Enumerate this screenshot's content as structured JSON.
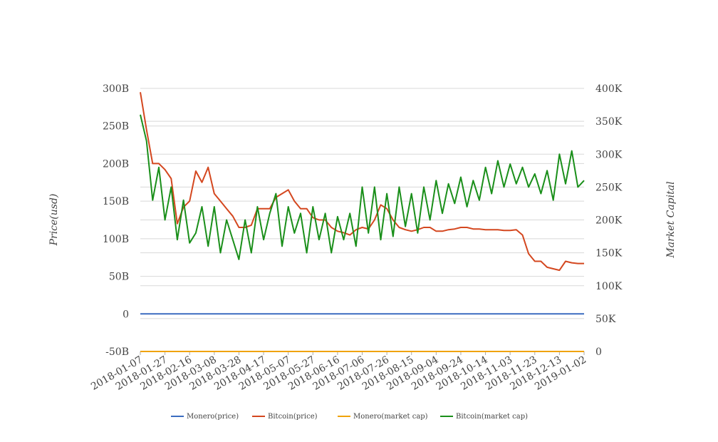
{
  "chart_data": {
    "type": "line",
    "ylabel": "Price(usd)",
    "y2label": "Market Capital",
    "x": [
      "2018-01-07",
      "2018-01-12",
      "2018-01-17",
      "2018-01-22",
      "2018-01-27",
      "2018-02-01",
      "2018-02-06",
      "2018-02-11",
      "2018-02-16",
      "2018-02-21",
      "2018-02-26",
      "2018-03-03",
      "2018-03-08",
      "2018-03-13",
      "2018-03-18",
      "2018-03-23",
      "2018-03-28",
      "2018-04-02",
      "2018-04-07",
      "2018-04-12",
      "2018-04-17",
      "2018-04-22",
      "2018-04-27",
      "2018-05-02",
      "2018-05-07",
      "2018-05-12",
      "2018-05-17",
      "2018-05-22",
      "2018-05-27",
      "2018-06-01",
      "2018-06-06",
      "2018-06-11",
      "2018-06-16",
      "2018-06-21",
      "2018-06-26",
      "2018-07-01",
      "2018-07-06",
      "2018-07-11",
      "2018-07-16",
      "2018-07-21",
      "2018-07-26",
      "2018-07-31",
      "2018-08-05",
      "2018-08-10",
      "2018-08-15",
      "2018-08-20",
      "2018-08-25",
      "2018-08-30",
      "2018-09-04",
      "2018-09-09",
      "2018-09-14",
      "2018-09-19",
      "2018-09-24",
      "2018-09-29",
      "2018-10-04",
      "2018-10-09",
      "2018-10-14",
      "2018-10-19",
      "2018-10-24",
      "2018-10-29",
      "2018-11-03",
      "2018-11-08",
      "2018-11-13",
      "2018-11-18",
      "2018-11-23",
      "2018-11-28",
      "2018-12-03",
      "2018-12-08",
      "2018-12-13",
      "2018-12-18",
      "2018-12-23",
      "2018-12-28",
      "2019-01-02"
    ],
    "xlim": [
      "2018-01-07",
      "2019-01-02"
    ],
    "xticks": [
      "2018-01-07",
      "2018-01-27",
      "2018-02-16",
      "2018-03-08",
      "2018-03-28",
      "2018-04-17",
      "2018-05-07",
      "2018-05-27",
      "2018-06-16",
      "2018-07-06",
      "2018-07-26",
      "2018-08-15",
      "2018-09-04",
      "2018-09-24",
      "2018-10-14",
      "2018-11-03",
      "2018-11-23",
      "2018-12-13",
      "2019-01-02"
    ],
    "ylim": [
      -50000000000.0,
      300000000000.0
    ],
    "yticks": [
      {
        "value": -50000000000.0,
        "label": "-50B"
      },
      0,
      {
        "value": 50000000000.0,
        "label": "50B"
      },
      {
        "value": 100000000000.0,
        "label": "100B"
      },
      {
        "value": 150000000000.0,
        "label": "150B"
      },
      {
        "value": 200000000000.0,
        "label": "200B"
      },
      {
        "value": 250000000000.0,
        "label": "250B"
      },
      {
        "value": 300000000000.0,
        "label": "300B"
      }
    ],
    "y2lim": [
      0,
      400000
    ],
    "y2ticks": [
      0,
      {
        "value": 50000,
        "label": "50K"
      },
      {
        "value": 100000,
        "label": "100K"
      },
      {
        "value": 150000,
        "label": "150K"
      },
      {
        "value": 200000,
        "label": "200K"
      },
      {
        "value": 250000,
        "label": "250K"
      },
      {
        "value": 300000,
        "label": "300K"
      },
      {
        "value": 350000,
        "label": "350K"
      },
      {
        "value": 400000,
        "label": "400K"
      }
    ],
    "grid": true,
    "legend": "bottom",
    "series": [
      {
        "name": "Monero(price)",
        "color": "#3b6cc0",
        "values": [
          380,
          370,
          360,
          340,
          330,
          300,
          200,
          230,
          300,
          330,
          320,
          350,
          260,
          220,
          200,
          180,
          200,
          210,
          230,
          270,
          260,
          280,
          240,
          200,
          210,
          180,
          150,
          130,
          140,
          120,
          110,
          120,
          130,
          140,
          150,
          140,
          130,
          125,
          120,
          110,
          115,
          120,
          125,
          130,
          110,
          105,
          110,
          115,
          120,
          115,
          110,
          112,
          115,
          110,
          105,
          100,
          110,
          112,
          115,
          110,
          95,
          80,
          60,
          55,
          50,
          50,
          48,
          45,
          50,
          55,
          50,
          52,
          55
        ]
      },
      {
        "name": "Bitcoin(price)",
        "color": "#d4471f",
        "values": [
          295000000000.0,
          245000000000.0,
          200000000000.0,
          200000000000.0,
          192000000000.0,
          180000000000.0,
          120000000000.0,
          142000000000.0,
          150000000000.0,
          190000000000.0,
          175000000000.0,
          195000000000.0,
          160000000000.0,
          150000000000.0,
          140000000000.0,
          130000000000.0,
          115000000000.0,
          115000000000.0,
          118000000000.0,
          140000000000.0,
          140000000000.0,
          140000000000.0,
          155000000000.0,
          160000000000.0,
          165000000000.0,
          150000000000.0,
          140000000000.0,
          140000000000.0,
          128000000000.0,
          125000000000.0,
          125000000000.0,
          115000000000.0,
          110000000000.0,
          108000000000.0,
          105000000000.0,
          112000000000.0,
          115000000000.0,
          113000000000.0,
          125000000000.0,
          145000000000.0,
          140000000000.0,
          125000000000.0,
          115000000000.0,
          112000000000.0,
          110000000000.0,
          112000000000.0,
          115000000000.0,
          115000000000.0,
          110000000000.0,
          110000000000.0,
          112000000000.0,
          113000000000.0,
          115000000000.0,
          115000000000.0,
          113000000000.0,
          113000000000.0,
          112000000000.0,
          112000000000.0,
          112000000000.0,
          111000000000.0,
          111000000000.0,
          112000000000.0,
          105000000000.0,
          80000000000.0,
          70000000000.0,
          70000000000.0,
          62000000000.0,
          60000000000.0,
          58000000000.0,
          70000000000.0,
          68000000000.0,
          67000000000.0,
          67000000000.0
        ]
      },
      {
        "name": "Monero(market cap)",
        "axis": "y2",
        "color": "#f0a30a",
        "values": [
          6,
          6,
          5.8,
          5.5,
          5.3,
          4.8,
          3.2,
          3.7,
          4.8,
          5.3,
          5.1,
          5.6,
          4.2,
          3.5,
          3.2,
          2.9,
          3.2,
          3.4,
          3.7,
          4.3,
          4.2,
          4.5,
          3.9,
          3.2,
          3.4,
          2.9,
          2.4,
          2.1,
          2.3,
          1.9,
          1.8,
          1.9,
          2.1,
          2.3,
          2.4,
          2.3,
          2.1,
          2,
          1.9,
          1.8,
          1.9,
          1.9,
          2,
          2.1,
          1.8,
          1.7,
          1.8,
          1.9,
          1.9,
          1.9,
          1.8,
          1.8,
          1.9,
          1.8,
          1.7,
          1.6,
          1.8,
          1.8,
          1.9,
          1.8,
          1.5,
          1.3,
          1,
          0.9,
          0.8,
          0.8,
          0.8,
          0.7,
          0.8,
          0.9,
          0.8,
          0.8,
          0.9
        ]
      },
      {
        "name": "Bitcoin(market cap)",
        "axis": "y2",
        "color": "#1a8f1a",
        "values": [
          360000,
          320000,
          230000,
          280000,
          200000,
          250000,
          170000,
          230000,
          165000,
          180000,
          220000,
          160000,
          220000,
          150000,
          200000,
          170000,
          140000,
          200000,
          150000,
          220000,
          170000,
          210000,
          240000,
          160000,
          220000,
          180000,
          210000,
          150000,
          220000,
          170000,
          210000,
          150000,
          205000,
          170000,
          210000,
          160000,
          250000,
          180000,
          250000,
          170000,
          240000,
          175000,
          250000,
          190000,
          240000,
          180000,
          250000,
          200000,
          260000,
          210000,
          255000,
          225000,
          265000,
          220000,
          260000,
          230000,
          280000,
          240000,
          290000,
          250000,
          285000,
          255000,
          280000,
          250000,
          270000,
          240000,
          275000,
          230000,
          300000,
          255000,
          305000,
          250000,
          260000
        ]
      }
    ]
  }
}
